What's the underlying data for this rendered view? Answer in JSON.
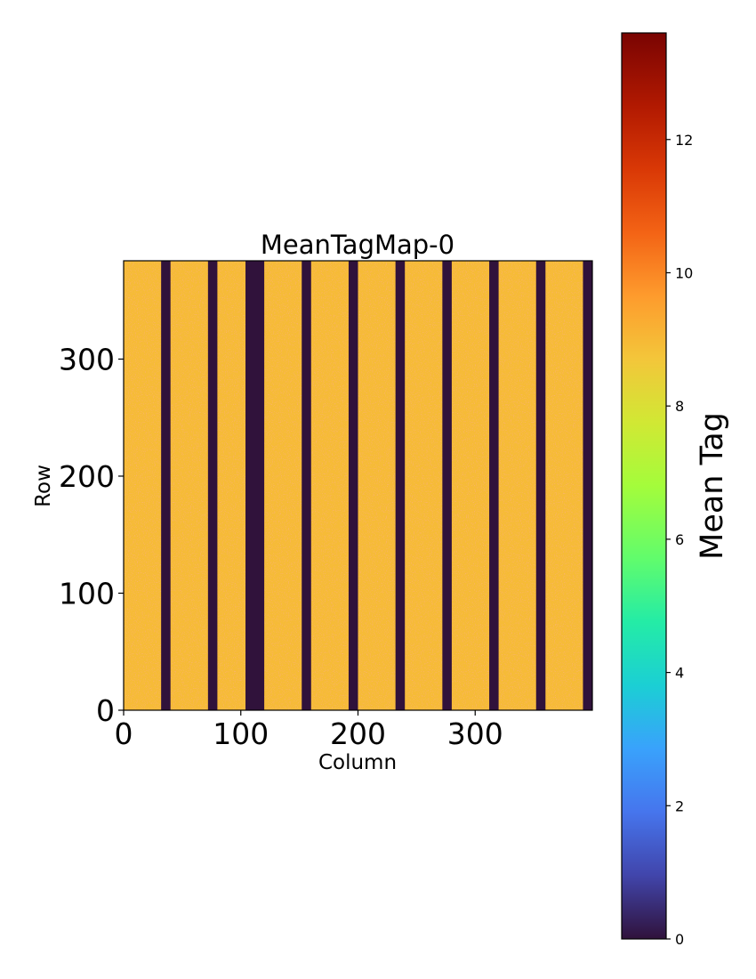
{
  "chart_data": {
    "type": "heatmap",
    "title": "MeanTagMap-0",
    "xlabel": "Column",
    "ylabel": "Row",
    "xlim": [
      0,
      400
    ],
    "ylim": [
      0,
      384
    ],
    "xticks": [
      0,
      100,
      200,
      300
    ],
    "yticks": [
      0,
      100,
      200,
      300
    ],
    "colormap": "turbo",
    "colorbar": {
      "label": "Mean Tag",
      "range": [
        0,
        13.6
      ],
      "ticks": [
        0,
        2,
        4,
        6,
        8,
        10,
        12
      ]
    },
    "background_value": 9.0,
    "gap_value": 0,
    "columns_with_value_0": [
      [
        32,
        40
      ],
      [
        72,
        80
      ],
      [
        104,
        120
      ],
      [
        152,
        160
      ],
      [
        192,
        200
      ],
      [
        232,
        240
      ],
      [
        272,
        280
      ],
      [
        312,
        320
      ],
      [
        352,
        360
      ],
      [
        392,
        400
      ]
    ]
  }
}
